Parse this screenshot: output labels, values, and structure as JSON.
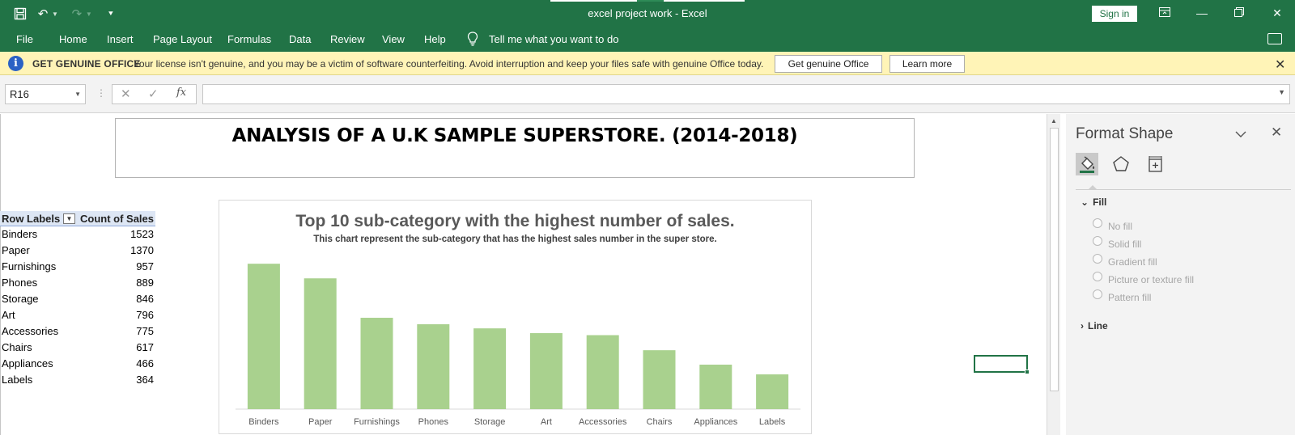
{
  "titlebar": {
    "doc_title": "excel project work  -  Excel",
    "sign_in": "Sign in"
  },
  "ribbon": {
    "tabs": [
      "File",
      "Home",
      "Insert",
      "Page Layout",
      "Formulas",
      "Data",
      "Review",
      "View",
      "Help"
    ],
    "tell_me": "Tell me what you want to do"
  },
  "message_bar": {
    "title": "GET GENUINE OFFICE",
    "text": "Your license isn't genuine, and you may be a victim of software counterfeiting. Avoid interruption and keep your files safe with genuine Office today.",
    "primary_button": "Get genuine Office",
    "secondary_button": "Learn more"
  },
  "formula_bar": {
    "name_box": "R16",
    "fx": "fx",
    "formula": ""
  },
  "sheet": {
    "title": "ANALYSIS OF A U.K SAMPLE SUPERSTORE. (2014-2018)"
  },
  "pivot": {
    "col1": "Row Labels",
    "col2": "Count of Sales",
    "rows": [
      {
        "label": "Binders",
        "value": "1523"
      },
      {
        "label": "Paper",
        "value": "1370"
      },
      {
        "label": "Furnishings",
        "value": "957"
      },
      {
        "label": "Phones",
        "value": "889"
      },
      {
        "label": "Storage",
        "value": "846"
      },
      {
        "label": "Art",
        "value": "796"
      },
      {
        "label": "Accessories",
        "value": "775"
      },
      {
        "label": "Chairs",
        "value": "617"
      },
      {
        "label": "Appliances",
        "value": "466"
      },
      {
        "label": "Labels",
        "value": "364"
      }
    ]
  },
  "chart_data": {
    "type": "bar",
    "title": "Top 10 sub-category with the highest number of sales.",
    "subtitle": "This chart represent the sub-category that has the highest sales number in the super store.",
    "categories": [
      "Binders",
      "Paper",
      "Furnishings",
      "Phones",
      "Storage",
      "Art",
      "Accessories",
      "Chairs",
      "Appliances",
      "Labels"
    ],
    "values": [
      1523,
      1370,
      957,
      889,
      846,
      796,
      775,
      617,
      466,
      364
    ],
    "color": "#a9d18e",
    "grid": false,
    "xlabel": "",
    "ylabel": ""
  },
  "format_pane": {
    "title": "Format Shape",
    "fill_section": "Fill",
    "options": [
      "No fill",
      "Solid fill",
      "Gradient fill",
      "Picture or texture fill",
      "Pattern fill"
    ],
    "line_section": "Line"
  },
  "colors": {
    "excel_green": "#217346",
    "message_bar": "#fff4b7",
    "pivot_header": "#dde6f4",
    "bar": "#a9d18e"
  }
}
